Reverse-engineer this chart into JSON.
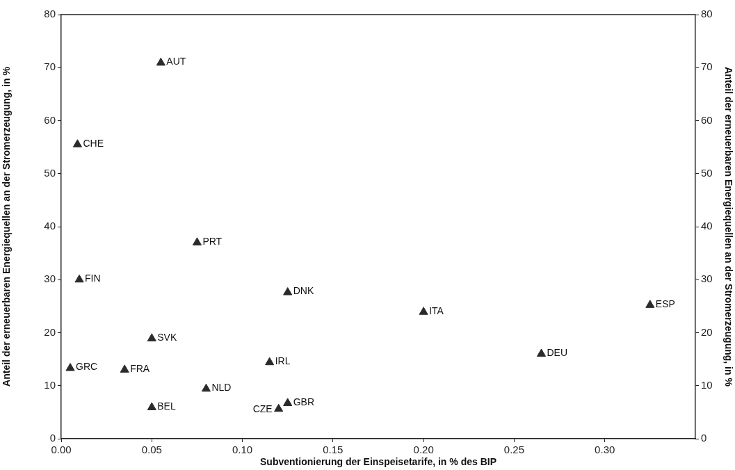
{
  "chart_data": {
    "type": "scatter",
    "xlabel": "Subventionierung der Einspeisetarife, in % des BIP",
    "ylabel": "Anteil der erneuerbaren Energiequellen an der Stromerzeugung, in %",
    "y2label": "Anteil der erneuerbaren Energiequellen an der Stromerzeugung, in %",
    "x": [
      0.055,
      0.009,
      0.075,
      0.01,
      0.125,
      0.2,
      0.325,
      0.05,
      0.005,
      0.035,
      0.115,
      0.265,
      0.08,
      0.05,
      0.12,
      0.125
    ],
    "values": [
      70.9,
      55.5,
      37.0,
      30.0,
      27.6,
      23.9,
      25.2,
      18.9,
      13.3,
      13.0,
      14.4,
      16.0,
      9.4,
      5.9,
      5.6,
      6.7
    ],
    "color": "#2b2b2b",
    "marker": "triangle",
    "grid": false,
    "legend": false,
    "xlim": [
      0,
      0.35
    ],
    "xticks": [
      {
        "value": 0,
        "label": "0.00"
      },
      {
        "value": 0.05,
        "label": "0.05"
      },
      {
        "value": 0.1,
        "label": "0.10"
      },
      {
        "value": 0.15,
        "label": "0.15"
      },
      {
        "value": 0.2,
        "label": "0.20"
      },
      {
        "value": 0.25,
        "label": "0.25"
      },
      {
        "value": 0.3,
        "label": "0.30"
      }
    ],
    "ylim": [
      0,
      80
    ],
    "yticks": [
      0,
      10,
      20,
      30,
      40,
      50,
      60,
      70,
      80
    ],
    "y2lim": [
      0,
      80
    ],
    "y2ticks": [
      0,
      10,
      20,
      30,
      40,
      50,
      60,
      70,
      80
    ],
    "annotations": [
      {
        "text": "AUT",
        "x": 0.055,
        "y": 70.9
      },
      {
        "text": "CHE",
        "x": 0.009,
        "y": 55.5
      },
      {
        "text": "PRT",
        "x": 0.075,
        "y": 37.0
      },
      {
        "text": "FIN",
        "x": 0.01,
        "y": 30.0
      },
      {
        "text": "DNK",
        "x": 0.125,
        "y": 27.6
      },
      {
        "text": "ITA",
        "x": 0.2,
        "y": 23.9
      },
      {
        "text": "ESP",
        "x": 0.325,
        "y": 25.2
      },
      {
        "text": "SVK",
        "x": 0.05,
        "y": 18.9
      },
      {
        "text": "GRC",
        "x": 0.005,
        "y": 13.3
      },
      {
        "text": "FRA",
        "x": 0.035,
        "y": 13.0
      },
      {
        "text": "IRL",
        "x": 0.115,
        "y": 14.4
      },
      {
        "text": "DEU",
        "x": 0.265,
        "y": 16.0
      },
      {
        "text": "NLD",
        "x": 0.08,
        "y": 9.4
      },
      {
        "text": "BEL",
        "x": 0.05,
        "y": 5.9
      },
      {
        "text": "CZE",
        "x": 0.12,
        "y": 5.6
      },
      {
        "text": "GBR",
        "x": 0.125,
        "y": 6.7
      }
    ]
  }
}
